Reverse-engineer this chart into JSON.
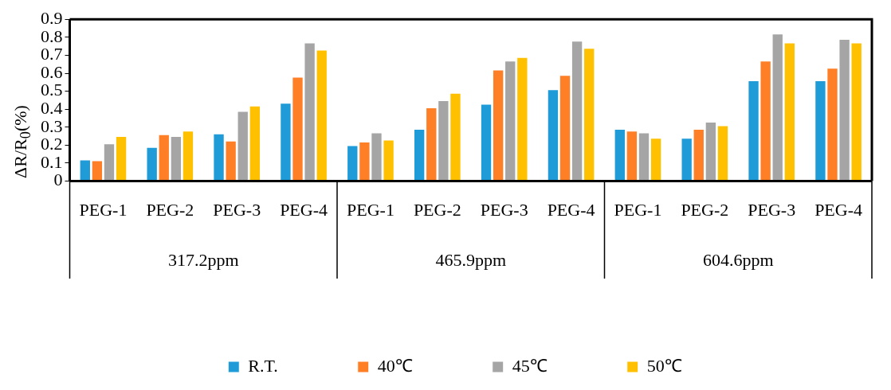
{
  "chart_data": {
    "type": "bar",
    "ylabel": "ΔR/R$_{0}$(%)",
    "categories": [
      "PEG-1",
      "PEG-2",
      "PEG-3",
      "PEG-4",
      "PEG-1",
      "PEG-2",
      "PEG-3",
      "PEG-4",
      "PEG-1",
      "PEG-2",
      "PEG-3",
      "PEG-4"
    ],
    "annotations": [
      "317.2ppm",
      "465.9ppm",
      "604.6ppm"
    ],
    "series": [
      {
        "name": "R.T.",
        "color": "#1f9bd7",
        "values": [
          0.12,
          0.19,
          0.265,
          0.435,
          0.2,
          0.29,
          0.43,
          0.51,
          0.29,
          0.24,
          0.56,
          0.56
        ]
      },
      {
        "name": "40℃",
        "color": "#ff7f27",
        "values": [
          0.115,
          0.26,
          0.225,
          0.58,
          0.22,
          0.41,
          0.62,
          0.59,
          0.28,
          0.29,
          0.67,
          0.63
        ]
      },
      {
        "name": "45℃",
        "color": "#a5a5a5",
        "values": [
          0.21,
          0.25,
          0.39,
          0.77,
          0.27,
          0.45,
          0.67,
          0.78,
          0.27,
          0.33,
          0.82,
          0.79
        ]
      },
      {
        "name": "50℃",
        "color": "#ffc000",
        "values": [
          0.25,
          0.28,
          0.42,
          0.73,
          0.23,
          0.49,
          0.69,
          0.74,
          0.24,
          0.31,
          0.77,
          0.77
        ]
      }
    ],
    "ylim": [
      0,
      0.9
    ],
    "yticks": [
      0,
      0.1,
      0.2,
      0.3,
      0.4,
      0.5,
      0.6,
      0.7,
      0.8,
      0.9
    ],
    "grid": false,
    "legend": "bottom"
  }
}
